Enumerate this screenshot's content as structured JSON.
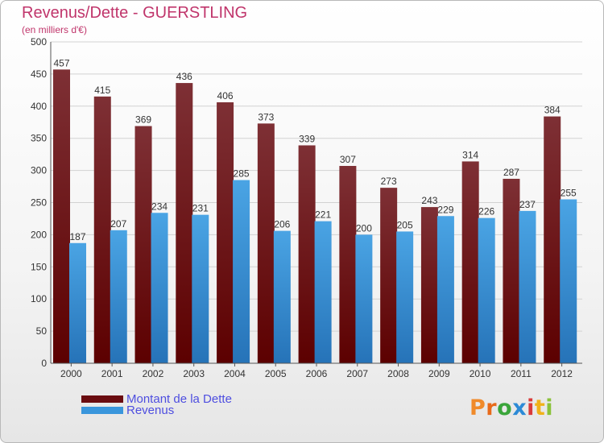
{
  "colors": {
    "accent": "#c0356b",
    "legend_text": "#4e4ee0",
    "debt_top": "#7e3035",
    "debt_bottom": "#5c0000",
    "revenue_top": "#4aa4e4",
    "revenue_bottom": "#2673b8"
  },
  "legend": {
    "items": [
      {
        "label": "Montant de la Dette",
        "color": "#6a0c10"
      },
      {
        "label": "Revenus",
        "color": "#3a96dc"
      }
    ]
  },
  "logo": {
    "text": "Proxiti",
    "letter_colors": [
      "#f08a2a",
      "#e86a1a",
      "#3aa53a",
      "#2c8ad6",
      "#d93a3a",
      "#f0b21a",
      "#8ac23a"
    ]
  },
  "chart_data": {
    "type": "bar",
    "title": "Revenus/Dette - GUERSTLING",
    "subtitle": "(en milliers d'€)",
    "categories": [
      "2000",
      "2001",
      "2002",
      "2003",
      "2004",
      "2005",
      "2006",
      "2007",
      "2008",
      "2009",
      "2010",
      "2011",
      "2012"
    ],
    "series": [
      {
        "name": "Montant de la Dette",
        "values": [
          457,
          415,
          369,
          436,
          406,
          373,
          339,
          307,
          273,
          243,
          314,
          287,
          384
        ]
      },
      {
        "name": "Revenus",
        "values": [
          187,
          207,
          234,
          231,
          285,
          206,
          221,
          200,
          205,
          229,
          226,
          237,
          255
        ]
      }
    ],
    "ylim": [
      0,
      500
    ],
    "yticks": [
      0,
      50,
      100,
      150,
      200,
      250,
      300,
      350,
      400,
      450,
      500
    ],
    "grid": true,
    "legend_position": "bottom-left"
  }
}
